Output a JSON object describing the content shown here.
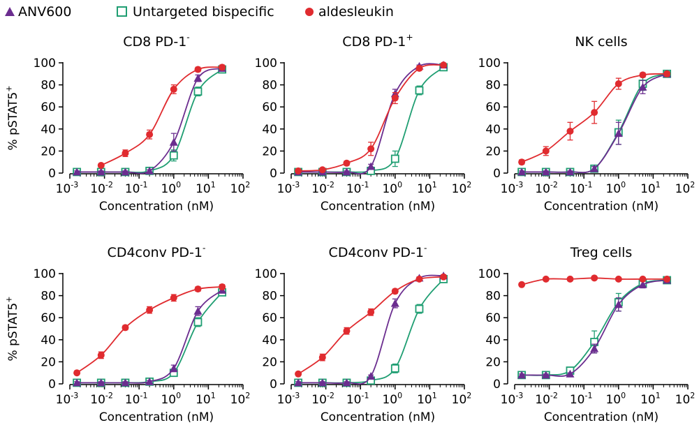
{
  "legend": {
    "items": [
      {
        "label": "ANV600",
        "marker": "triangle",
        "color": "#6b2d8f"
      },
      {
        "label": "Untargeted bispecific",
        "marker": "open-square",
        "color": "#1f9e72"
      },
      {
        "label": "aldesleukin",
        "marker": "circle",
        "color": "#e02b2f"
      }
    ]
  },
  "colors": {
    "anv600": "#6b2d8f",
    "untargeted": "#1f9e72",
    "aldesleukin": "#e02b2f"
  },
  "chart_data": [
    {
      "type": "scatter",
      "title": "CD8 PD-1",
      "title_sup": "-",
      "xlabel": "Concentration (nM)",
      "ylabel": "% pSTAT5",
      "ylabel_sup": "+",
      "x_scale": "log",
      "xlim": [
        0.001,
        100
      ],
      "ylim": [
        0,
        100
      ],
      "x_ticks": [
        "10^-3",
        "10^-2",
        "10^-1",
        "10^0",
        "10^1",
        "10^2"
      ],
      "y_ticks": [
        0,
        20,
        40,
        60,
        80,
        100
      ],
      "x": [
        0.0016,
        0.008,
        0.04,
        0.2,
        1,
        5,
        25
      ],
      "series": [
        {
          "name": "ANV600",
          "values": [
            1,
            1,
            1,
            2,
            28,
            86,
            95
          ],
          "err": [
            1,
            1,
            1,
            1,
            8,
            3,
            2
          ]
        },
        {
          "name": "Untargeted bispecific",
          "values": [
            1,
            1,
            1,
            2,
            16,
            74,
            94
          ],
          "err": [
            1,
            1,
            1,
            1,
            5,
            4,
            2
          ]
        },
        {
          "name": "aldesleukin",
          "values": [
            null,
            7,
            18,
            35,
            76,
            94,
            96
          ],
          "err": [
            0,
            1,
            3,
            4,
            4,
            2,
            2
          ]
        }
      ]
    },
    {
      "type": "scatter",
      "title": "CD8 PD-1",
      "title_sup": "+",
      "xlabel": "Concentration (nM)",
      "ylabel": "",
      "ylabel_sup": "",
      "x_scale": "log",
      "xlim": [
        0.001,
        100
      ],
      "ylim": [
        0,
        100
      ],
      "x_ticks": [
        "10^-3",
        "10^-2",
        "10^-1",
        "10^0",
        "10^1",
        "10^2"
      ],
      "y_ticks": [
        0,
        20,
        40,
        60,
        80,
        100
      ],
      "x": [
        0.0016,
        0.008,
        0.04,
        0.2,
        1,
        5,
        25
      ],
      "series": [
        {
          "name": "ANV600",
          "values": [
            1,
            1,
            1,
            6,
            72,
            97,
            98
          ],
          "err": [
            1,
            1,
            1,
            2,
            4,
            1,
            1
          ]
        },
        {
          "name": "Untargeted bispecific",
          "values": [
            1,
            1,
            1,
            2,
            13,
            75,
            96
          ],
          "err": [
            1,
            1,
            1,
            1,
            7,
            4,
            2
          ]
        },
        {
          "name": "aldesleukin",
          "values": [
            2,
            3,
            9,
            22,
            68,
            95,
            98
          ],
          "err": [
            1,
            1,
            2,
            6,
            5,
            2,
            1
          ]
        }
      ]
    },
    {
      "type": "scatter",
      "title": "NK cells",
      "title_sup": "",
      "xlabel": "Concentration (nM)",
      "ylabel": "",
      "ylabel_sup": "",
      "x_scale": "log",
      "xlim": [
        0.001,
        100
      ],
      "ylim": [
        0,
        100
      ],
      "x_ticks": [
        "10^-3",
        "10^-2",
        "10^-1",
        "10^0",
        "10^1",
        "10^2"
      ],
      "y_ticks": [
        0,
        20,
        40,
        60,
        80,
        100
      ],
      "x": [
        0.0016,
        0.008,
        0.04,
        0.2,
        1,
        5,
        25
      ],
      "series": [
        {
          "name": "ANV600",
          "values": [
            1,
            1,
            1,
            4,
            36,
            78,
            90
          ],
          "err": [
            1,
            1,
            1,
            2,
            10,
            6,
            2
          ]
        },
        {
          "name": "Untargeted bispecific",
          "values": [
            1,
            1,
            1,
            4,
            37,
            81,
            90
          ],
          "err": [
            1,
            1,
            1,
            2,
            11,
            6,
            2
          ]
        },
        {
          "name": "aldesleukin",
          "values": [
            10,
            20,
            38,
            55,
            81,
            89,
            90
          ],
          "err": [
            2,
            4,
            8,
            10,
            5,
            2,
            2
          ]
        }
      ]
    },
    {
      "type": "scatter",
      "title": "CD4conv PD-1",
      "title_sup": "-",
      "xlabel": "Concentration (nM)",
      "ylabel": "% pSTAT5",
      "ylabel_sup": "+",
      "x_scale": "log",
      "xlim": [
        0.001,
        100
      ],
      "ylim": [
        0,
        100
      ],
      "x_ticks": [
        "10^-3",
        "10^-2",
        "10^-1",
        "10^0",
        "10^1",
        "10^2"
      ],
      "y_ticks": [
        0,
        20,
        40,
        60,
        80,
        100
      ],
      "x": [
        0.0016,
        0.008,
        0.04,
        0.2,
        1,
        5,
        25
      ],
      "series": [
        {
          "name": "ANV600",
          "values": [
            1,
            1,
            1,
            2,
            14,
            66,
            85
          ],
          "err": [
            1,
            1,
            1,
            1,
            3,
            4,
            2
          ]
        },
        {
          "name": "Untargeted bispecific",
          "values": [
            1,
            1,
            1,
            2,
            10,
            56,
            83
          ],
          "err": [
            1,
            1,
            1,
            1,
            2,
            4,
            2
          ]
        },
        {
          "name": "aldesleukin",
          "values": [
            10,
            26,
            51,
            67,
            78,
            86,
            88
          ],
          "err": [
            1,
            3,
            2,
            3,
            3,
            2,
            2
          ]
        }
      ]
    },
    {
      "type": "scatter",
      "title": "CD4conv PD-1",
      "title_sup": "-",
      "xlabel": "Concentration (nM)",
      "ylabel": "",
      "ylabel_sup": "",
      "x_scale": "log",
      "xlim": [
        0.001,
        100
      ],
      "ylim": [
        0,
        100
      ],
      "x_ticks": [
        "10^-3",
        "10^-2",
        "10^-1",
        "10^0",
        "10^1",
        "10^2"
      ],
      "y_ticks": [
        0,
        20,
        40,
        60,
        80,
        100
      ],
      "x": [
        0.0016,
        0.008,
        0.04,
        0.2,
        1,
        5,
        25
      ],
      "series": [
        {
          "name": "ANV600",
          "values": [
            1,
            1,
            1,
            7,
            73,
            96,
            98
          ],
          "err": [
            1,
            1,
            1,
            1,
            4,
            1,
            1
          ]
        },
        {
          "name": "Untargeted bispecific",
          "values": [
            1,
            1,
            1,
            3,
            14,
            68,
            95
          ],
          "err": [
            1,
            1,
            1,
            1,
            4,
            4,
            2
          ]
        },
        {
          "name": "aldesleukin",
          "values": [
            9,
            24,
            48,
            65,
            84,
            95,
            97
          ],
          "err": [
            1,
            3,
            3,
            3,
            2,
            1,
            1
          ]
        }
      ]
    },
    {
      "type": "scatter",
      "title": "Treg cells",
      "title_sup": "",
      "xlabel": "Concentration (nM)",
      "ylabel": "",
      "ylabel_sup": "",
      "x_scale": "log",
      "xlim": [
        0.001,
        100
      ],
      "ylim": [
        0,
        100
      ],
      "x_ticks": [
        "10^-3",
        "10^-2",
        "10^-1",
        "10^0",
        "10^1",
        "10^2"
      ],
      "y_ticks": [
        0,
        20,
        40,
        60,
        80,
        100
      ],
      "x": [
        0.0016,
        0.008,
        0.04,
        0.2,
        1,
        5,
        25
      ],
      "series": [
        {
          "name": "ANV600",
          "values": [
            8,
            8,
            9,
            32,
            72,
            90,
            94
          ],
          "err": [
            1,
            1,
            1,
            4,
            6,
            3,
            2
          ]
        },
        {
          "name": "Untargeted bispecific",
          "values": [
            8,
            8,
            12,
            38,
            74,
            91,
            94
          ],
          "err": [
            1,
            1,
            2,
            10,
            8,
            3,
            2
          ]
        },
        {
          "name": "aldesleukin",
          "values": [
            90,
            95,
            95,
            96,
            95,
            95,
            95
          ],
          "err": [
            1,
            1,
            1,
            1,
            1,
            1,
            1
          ]
        }
      ]
    }
  ]
}
